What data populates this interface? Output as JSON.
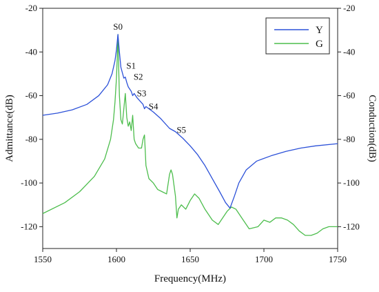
{
  "chart_data": {
    "type": "line",
    "title": "",
    "xlabel": "Frequency(MHz)",
    "ylabel": "Admittance(dB)",
    "ylabel_right": "Conduction(dB)",
    "xlim": [
      1550,
      1750
    ],
    "ylim": [
      -130,
      -20
    ],
    "ylim_right": [
      -130,
      -20
    ],
    "x_ticks": [
      1550,
      1600,
      1650,
      1700,
      1750
    ],
    "y_ticks": [
      -20,
      -40,
      -60,
      -80,
      -100,
      -120
    ],
    "y_ticks_right": [
      -20,
      -40,
      -60,
      -80,
      -100,
      -120
    ],
    "grid": false,
    "legend_position": "top-right",
    "series": [
      {
        "name": "Y",
        "color": "#2b50d8",
        "x": [
          1550,
          1560,
          1570,
          1580,
          1588,
          1594,
          1597,
          1599,
          1600,
          1601,
          1602,
          1603,
          1605,
          1606,
          1607,
          1608,
          1610,
          1611,
          1612,
          1614,
          1618,
          1619,
          1620,
          1625,
          1630,
          1636,
          1640,
          1645,
          1650,
          1655,
          1660,
          1665,
          1670,
          1674,
          1677,
          1680,
          1683,
          1688,
          1695,
          1705,
          1715,
          1725,
          1735,
          1750
        ],
        "values": [
          -69,
          -68,
          -66.5,
          -64,
          -60,
          -55,
          -50,
          -44,
          -39,
          -32,
          -40,
          -47,
          -52,
          -51.5,
          -54,
          -56,
          -58,
          -60,
          -59,
          -61,
          -64,
          -66,
          -65,
          -67.5,
          -70.5,
          -75,
          -76.5,
          -79.5,
          -83,
          -87,
          -92,
          -98,
          -104,
          -109,
          -111.5,
          -106,
          -100,
          -94,
          -90,
          -87.5,
          -85.5,
          -84,
          -83,
          -82
        ]
      },
      {
        "name": "G",
        "color": "#4cbd4c",
        "x": [
          1550,
          1565,
          1575,
          1585,
          1592,
          1596,
          1598,
          1599,
          1600,
          1600.5,
          1601,
          1601.5,
          1602,
          1603,
          1604,
          1605,
          1606,
          1607,
          1608,
          1609,
          1610,
          1611,
          1612,
          1613,
          1615,
          1617,
          1618,
          1619,
          1620,
          1622,
          1625,
          1628,
          1631,
          1634,
          1636,
          1637,
          1638,
          1640,
          1641,
          1642,
          1644,
          1647,
          1650,
          1653,
          1656,
          1660,
          1665,
          1669,
          1672,
          1675,
          1678,
          1681,
          1685,
          1690,
          1696,
          1700,
          1704,
          1708,
          1712,
          1716,
          1720,
          1724,
          1728,
          1732,
          1736,
          1740,
          1744,
          1747,
          1750
        ],
        "values": [
          -114,
          -109,
          -104,
          -97,
          -89,
          -80,
          -71,
          -63,
          -52,
          -43,
          -32,
          -47,
          -60,
          -71,
          -73,
          -66,
          -59,
          -70,
          -74,
          -72,
          -76,
          -69,
          -80,
          -82,
          -84,
          -84,
          -80,
          -78,
          -92,
          -98,
          -100,
          -103,
          -104,
          -105,
          -96,
          -94,
          -96,
          -106,
          -116,
          -112,
          -110,
          -112,
          -108,
          -105,
          -107,
          -112,
          -117,
          -119,
          -116,
          -113,
          -111,
          -112,
          -116,
          -121,
          -120,
          -117,
          -118,
          -116,
          -116,
          -117,
          -119,
          -122,
          -124,
          -124,
          -123,
          -121,
          -120,
          -120,
          -120
        ]
      }
    ],
    "annotations": [
      {
        "text": "S0",
        "x": 1601,
        "y": -32
      },
      {
        "text": "S1",
        "x": 1603,
        "y": -47
      },
      {
        "text": "S2",
        "x": 1606,
        "y": -51.5
      },
      {
        "text": "S3",
        "x": 1612,
        "y": -59
      },
      {
        "text": "S4",
        "x": 1620,
        "y": -65
      },
      {
        "text": "S5",
        "x": 1638,
        "y": -75.5
      }
    ]
  }
}
